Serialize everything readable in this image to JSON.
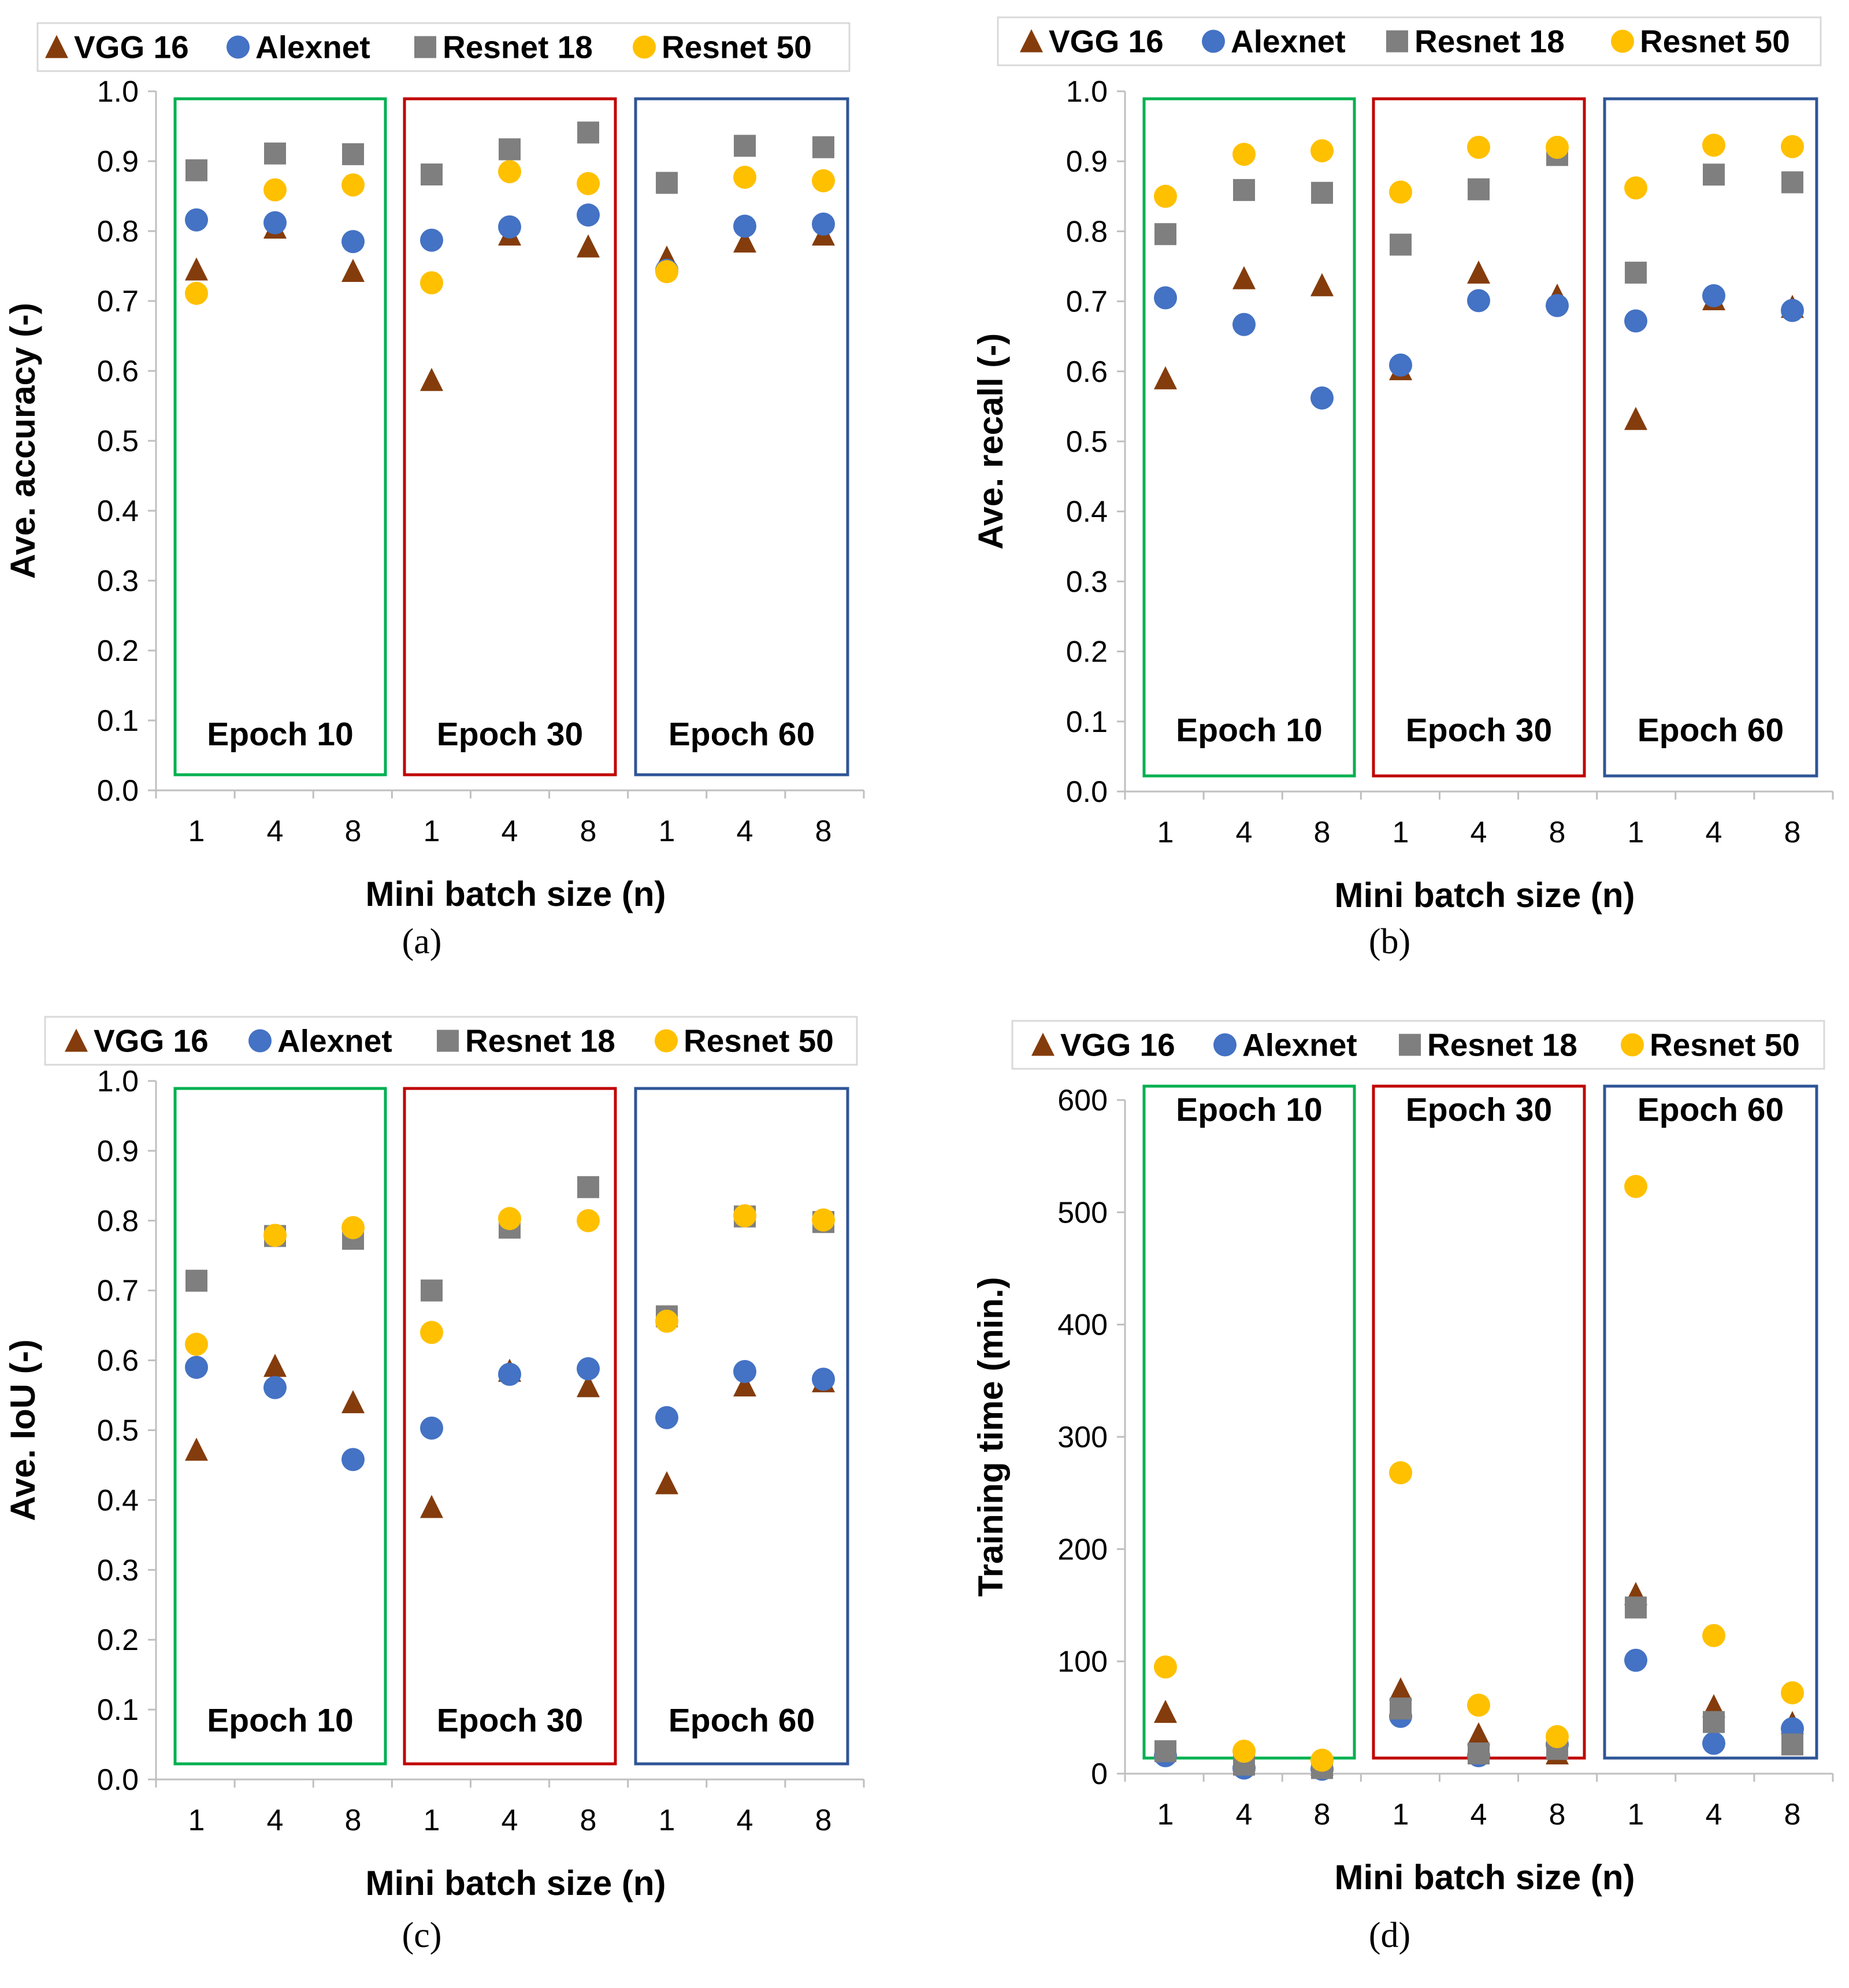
{
  "chart_data": [
    {
      "type": "scatter",
      "panel_label": "(a)",
      "ylabel": "Ave. accuracy (-)",
      "xlabel": "Mini batch size (n)",
      "ylim": [
        0,
        1
      ],
      "yticks": [
        "0.0",
        "0.1",
        "0.2",
        "0.3",
        "0.4",
        "0.5",
        "0.6",
        "0.7",
        "0.8",
        "0.9",
        "1.0"
      ],
      "categories": [
        "1",
        "4",
        "8",
        "1",
        "4",
        "8",
        "1",
        "4",
        "8"
      ],
      "groups": [
        "Epoch 10",
        "Epoch 30",
        "Epoch 60"
      ],
      "legend": [
        "VGG 16",
        "Alexnet",
        "Resnet 18",
        "Resnet 50"
      ],
      "series": [
        {
          "name": "VGG 16",
          "values": [
            0.745,
            0.805,
            0.743,
            0.587,
            0.795,
            0.778,
            0.762,
            0.785,
            0.795
          ]
        },
        {
          "name": "Alexnet",
          "values": [
            0.816,
            0.812,
            0.785,
            0.787,
            0.806,
            0.823,
            0.744,
            0.807,
            0.81
          ]
        },
        {
          "name": "Resnet 18",
          "values": [
            0.887,
            0.911,
            0.91,
            0.881,
            0.917,
            0.941,
            0.869,
            0.922,
            0.92
          ]
        },
        {
          "name": "Resnet 50",
          "values": [
            0.711,
            0.859,
            0.866,
            0.726,
            0.885,
            0.868,
            0.742,
            0.877,
            0.872
          ]
        }
      ]
    },
    {
      "type": "scatter",
      "panel_label": "(b)",
      "ylabel": "Ave. recall (-)",
      "xlabel": "Mini batch size (n)",
      "ylim": [
        0,
        1
      ],
      "yticks": [
        "0.0",
        "0.1",
        "0.2",
        "0.3",
        "0.4",
        "0.5",
        "0.6",
        "0.7",
        "0.8",
        "0.9",
        "1.0"
      ],
      "categories": [
        "1",
        "4",
        "8",
        "1",
        "4",
        "8",
        "1",
        "4",
        "8"
      ],
      "groups": [
        "Epoch 10",
        "Epoch 30",
        "Epoch 60"
      ],
      "legend": [
        "VGG 16",
        "Alexnet",
        "Resnet 18",
        "Resnet 50"
      ],
      "series": [
        {
          "name": "VGG 16",
          "values": [
            0.59,
            0.733,
            0.723,
            0.603,
            0.741,
            0.708,
            0.532,
            0.703,
            0.692
          ]
        },
        {
          "name": "Alexnet",
          "values": [
            0.705,
            0.667,
            0.562,
            0.609,
            0.701,
            0.694,
            0.672,
            0.708,
            0.687
          ]
        },
        {
          "name": "Resnet 18",
          "values": [
            0.796,
            0.859,
            0.855,
            0.781,
            0.86,
            0.909,
            0.741,
            0.881,
            0.87
          ]
        },
        {
          "name": "Resnet 50",
          "values": [
            0.85,
            0.91,
            0.915,
            0.856,
            0.92,
            0.92,
            0.862,
            0.923,
            0.921
          ]
        }
      ]
    },
    {
      "type": "scatter",
      "panel_label": "(c)",
      "ylabel": "Ave. IoU (-)",
      "xlabel": "Mini batch size (n)",
      "ylim": [
        0,
        1
      ],
      "yticks": [
        "0.0",
        "0.1",
        "0.2",
        "0.3",
        "0.4",
        "0.5",
        "0.6",
        "0.7",
        "0.8",
        "0.9",
        "1.0"
      ],
      "categories": [
        "1",
        "4",
        "8",
        "1",
        "4",
        "8",
        "1",
        "4",
        "8"
      ],
      "groups": [
        "Epoch 10",
        "Epoch 30",
        "Epoch 60"
      ],
      "legend": [
        "VGG 16",
        "Alexnet",
        "Resnet 18",
        "Resnet 50"
      ],
      "series": [
        {
          "name": "VGG 16",
          "values": [
            0.472,
            0.592,
            0.54,
            0.39,
            0.585,
            0.563,
            0.424,
            0.564,
            0.57
          ]
        },
        {
          "name": "Alexnet",
          "values": [
            0.59,
            0.561,
            0.458,
            0.503,
            0.58,
            0.588,
            0.518,
            0.584,
            0.573
          ]
        },
        {
          "name": "Resnet 18",
          "values": [
            0.714,
            0.778,
            0.774,
            0.7,
            0.79,
            0.848,
            0.663,
            0.806,
            0.798
          ]
        },
        {
          "name": "Resnet 50",
          "values": [
            0.623,
            0.779,
            0.79,
            0.64,
            0.803,
            0.8,
            0.656,
            0.807,
            0.801
          ]
        }
      ]
    },
    {
      "type": "scatter",
      "panel_label": "(d)",
      "ylabel": "Training time (min.)",
      "xlabel": "Mini batch size (n)",
      "ylim": [
        0,
        600
      ],
      "yticks": [
        "0",
        "100",
        "200",
        "300",
        "400",
        "500",
        "600"
      ],
      "categories": [
        "1",
        "4",
        "8",
        "1",
        "4",
        "8",
        "1",
        "4",
        "8"
      ],
      "groups": [
        "Epoch 10",
        "Epoch 30",
        "Epoch 60"
      ],
      "legend": [
        "VGG 16",
        "Alexnet",
        "Resnet 18",
        "Resnet 50"
      ],
      "series": [
        {
          "name": "VGG 16",
          "values": [
            55,
            12,
            8,
            75,
            35,
            18,
            160,
            60,
            45
          ]
        },
        {
          "name": "Alexnet",
          "values": [
            16,
            5,
            4,
            51,
            16,
            26,
            101,
            27,
            40
          ]
        },
        {
          "name": "Resnet 18",
          "values": [
            20,
            8,
            5,
            58,
            18,
            22,
            148,
            46,
            26
          ]
        },
        {
          "name": "Resnet 50",
          "values": [
            95,
            20,
            12,
            268,
            61,
            33,
            523,
            123,
            72
          ]
        }
      ]
    }
  ],
  "colors": {
    "vgg16": "#843C0C",
    "alexnet": "#4472C4",
    "resnet18": "#7F7F7F",
    "resnet50": "#FFC000",
    "epoch10_box": "#00B050",
    "epoch30_box": "#C00000",
    "epoch60_box": "#2F5597"
  }
}
